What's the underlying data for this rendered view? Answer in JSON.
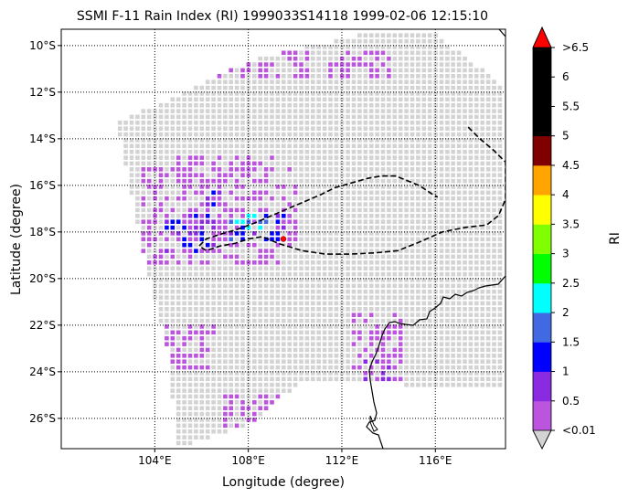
{
  "title": "SSMI F-11 Rain Index (RI) 1999033S14118 1999-02-06 12:15:10",
  "xlabel": "Longitude (degree)",
  "ylabel": "Latitude (degree)",
  "colorbar_label": "RI",
  "chart_data": {
    "type": "map",
    "xlim": [
      100.0,
      119.0
    ],
    "ylim": [
      -27.3,
      -9.3
    ],
    "x_ticks": [
      {
        "value": 104,
        "label": "104°E"
      },
      {
        "value": 108,
        "label": "108°E"
      },
      {
        "value": 112,
        "label": "112°E"
      },
      {
        "value": 116,
        "label": "116°E"
      }
    ],
    "y_ticks": [
      {
        "value": -10,
        "label": "10°S"
      },
      {
        "value": -12,
        "label": "12°S"
      },
      {
        "value": -14,
        "label": "14°S"
      },
      {
        "value": -16,
        "label": "16°S"
      },
      {
        "value": -18,
        "label": "18°S"
      },
      {
        "value": -20,
        "label": "20°S"
      },
      {
        "value": -22,
        "label": "22°S"
      },
      {
        "value": -24,
        "label": "24°S"
      },
      {
        "value": -26,
        "label": "26°S"
      }
    ],
    "grid": "dotted",
    "colorbar": {
      "labels": [
        "<0.01",
        "0.5",
        "1",
        "1.5",
        "2",
        "2.5",
        "3",
        "3.5",
        "4",
        "4.5",
        "5",
        "5.5",
        "6",
        ">6.5"
      ],
      "colors": [
        "#bb55dd",
        "#8a2be2",
        "#0000ff",
        "#4169e1",
        "#00ffff",
        "#00ff00",
        "#7fff00",
        "#ffff00",
        "#ffa500",
        "#800000",
        "#000000",
        "#000000",
        "#000000"
      ],
      "under_color": "#d3d3d3",
      "over_color": "#ff0000"
    },
    "swath_polygon": [
      [
        102.4,
        -13.3
      ],
      [
        108.2,
        -10.6
      ],
      [
        113.2,
        -9.4
      ],
      [
        116.1,
        -9.5
      ],
      [
        116.9,
        -10.2
      ],
      [
        119.0,
        -11.8
      ],
      [
        119.0,
        -24.8
      ],
      [
        110.4,
        -24.3
      ],
      [
        108.1,
        -26.2
      ],
      [
        104.9,
        -27.3
      ],
      [
        104.6,
        -23.2
      ],
      [
        103.5,
        -19.0
      ]
    ],
    "track_lon": [
      117.4,
      117.9,
      118.5,
      119.0,
      119.0,
      118.7,
      118.2,
      117.3,
      116.3,
      115.4,
      114.4,
      113.4,
      112.3,
      111.3,
      110.3,
      109.3,
      108.6,
      108.0,
      107.4,
      106.8,
      106.2,
      105.9,
      106.2,
      106.8,
      107.5,
      108.3,
      109.0,
      109.7,
      110.4,
      111.1,
      111.7,
      112.4,
      113.1,
      113.7,
      114.3,
      114.8,
      115.3,
      115.6,
      115.9,
      116.1
    ],
    "track_lat": [
      -13.5,
      -14.0,
      -14.5,
      -15.0,
      -16.6,
      -17.3,
      -17.7,
      -17.8,
      -18.0,
      -18.4,
      -18.8,
      -18.9,
      -18.95,
      -18.95,
      -18.8,
      -18.5,
      -18.2,
      -18.3,
      -18.5,
      -18.6,
      -18.8,
      -18.6,
      -18.3,
      -18.1,
      -17.9,
      -17.6,
      -17.3,
      -17.0,
      -16.7,
      -16.4,
      -16.1,
      -15.9,
      -15.7,
      -15.6,
      -15.6,
      -15.8,
      -16.0,
      -16.2,
      -16.4,
      -16.5
    ],
    "storm_position": [
      109.5,
      -18.3
    ],
    "rain_cells": [
      {
        "lon": [
          104.5,
          106.5
        ],
        "lat": [
          -18.8,
          -17.2
        ],
        "ri": 1.2
      },
      {
        "lon": [
          105.8,
          106.8
        ],
        "lat": [
          -17.0,
          -16.2
        ],
        "ri": 1.1
      },
      {
        "lon": [
          107.2,
          109.5
        ],
        "lat": [
          -18.3,
          -17.1
        ],
        "ri": 1.5
      },
      {
        "lon": [
          107.4,
          108.5
        ],
        "lat": [
          -18.0,
          -17.3
        ],
        "ri": 2.3
      },
      {
        "lon": [
          103.5,
          110.0
        ],
        "lat": [
          -19.5,
          -15.2
        ],
        "ri": 0.4
      },
      {
        "lon": [
          105.0,
          109.0
        ],
        "lat": [
          -16.0,
          -14.8
        ],
        "ri": 0.3
      },
      {
        "lon": [
          106.5,
          110.5
        ],
        "lat": [
          -11.3,
          -10.3
        ],
        "ri": 0.3
      },
      {
        "lon": [
          111.5,
          114.0
        ],
        "lat": [
          -11.3,
          -10.2
        ],
        "ri": 0.3
      },
      {
        "lon": [
          112.5,
          114.5
        ],
        "lat": [
          -24.5,
          -21.5
        ],
        "ri": 0.3
      },
      {
        "lon": [
          110.5,
          112.5
        ],
        "lat": [
          -26.5,
          -24.5
        ],
        "ri": 0.4
      },
      {
        "lon": [
          107.0,
          111.0
        ],
        "lat": [
          -26.5,
          -25.0
        ],
        "ri": 0.3
      },
      {
        "lon": [
          104.5,
          106.5
        ],
        "lat": [
          -24.0,
          -22.0
        ],
        "ri": 0.3
      },
      {
        "lon": [
          113.0,
          114.0
        ],
        "lat": [
          -26.0,
          -23.5
        ],
        "ri": 0.8
      }
    ]
  }
}
